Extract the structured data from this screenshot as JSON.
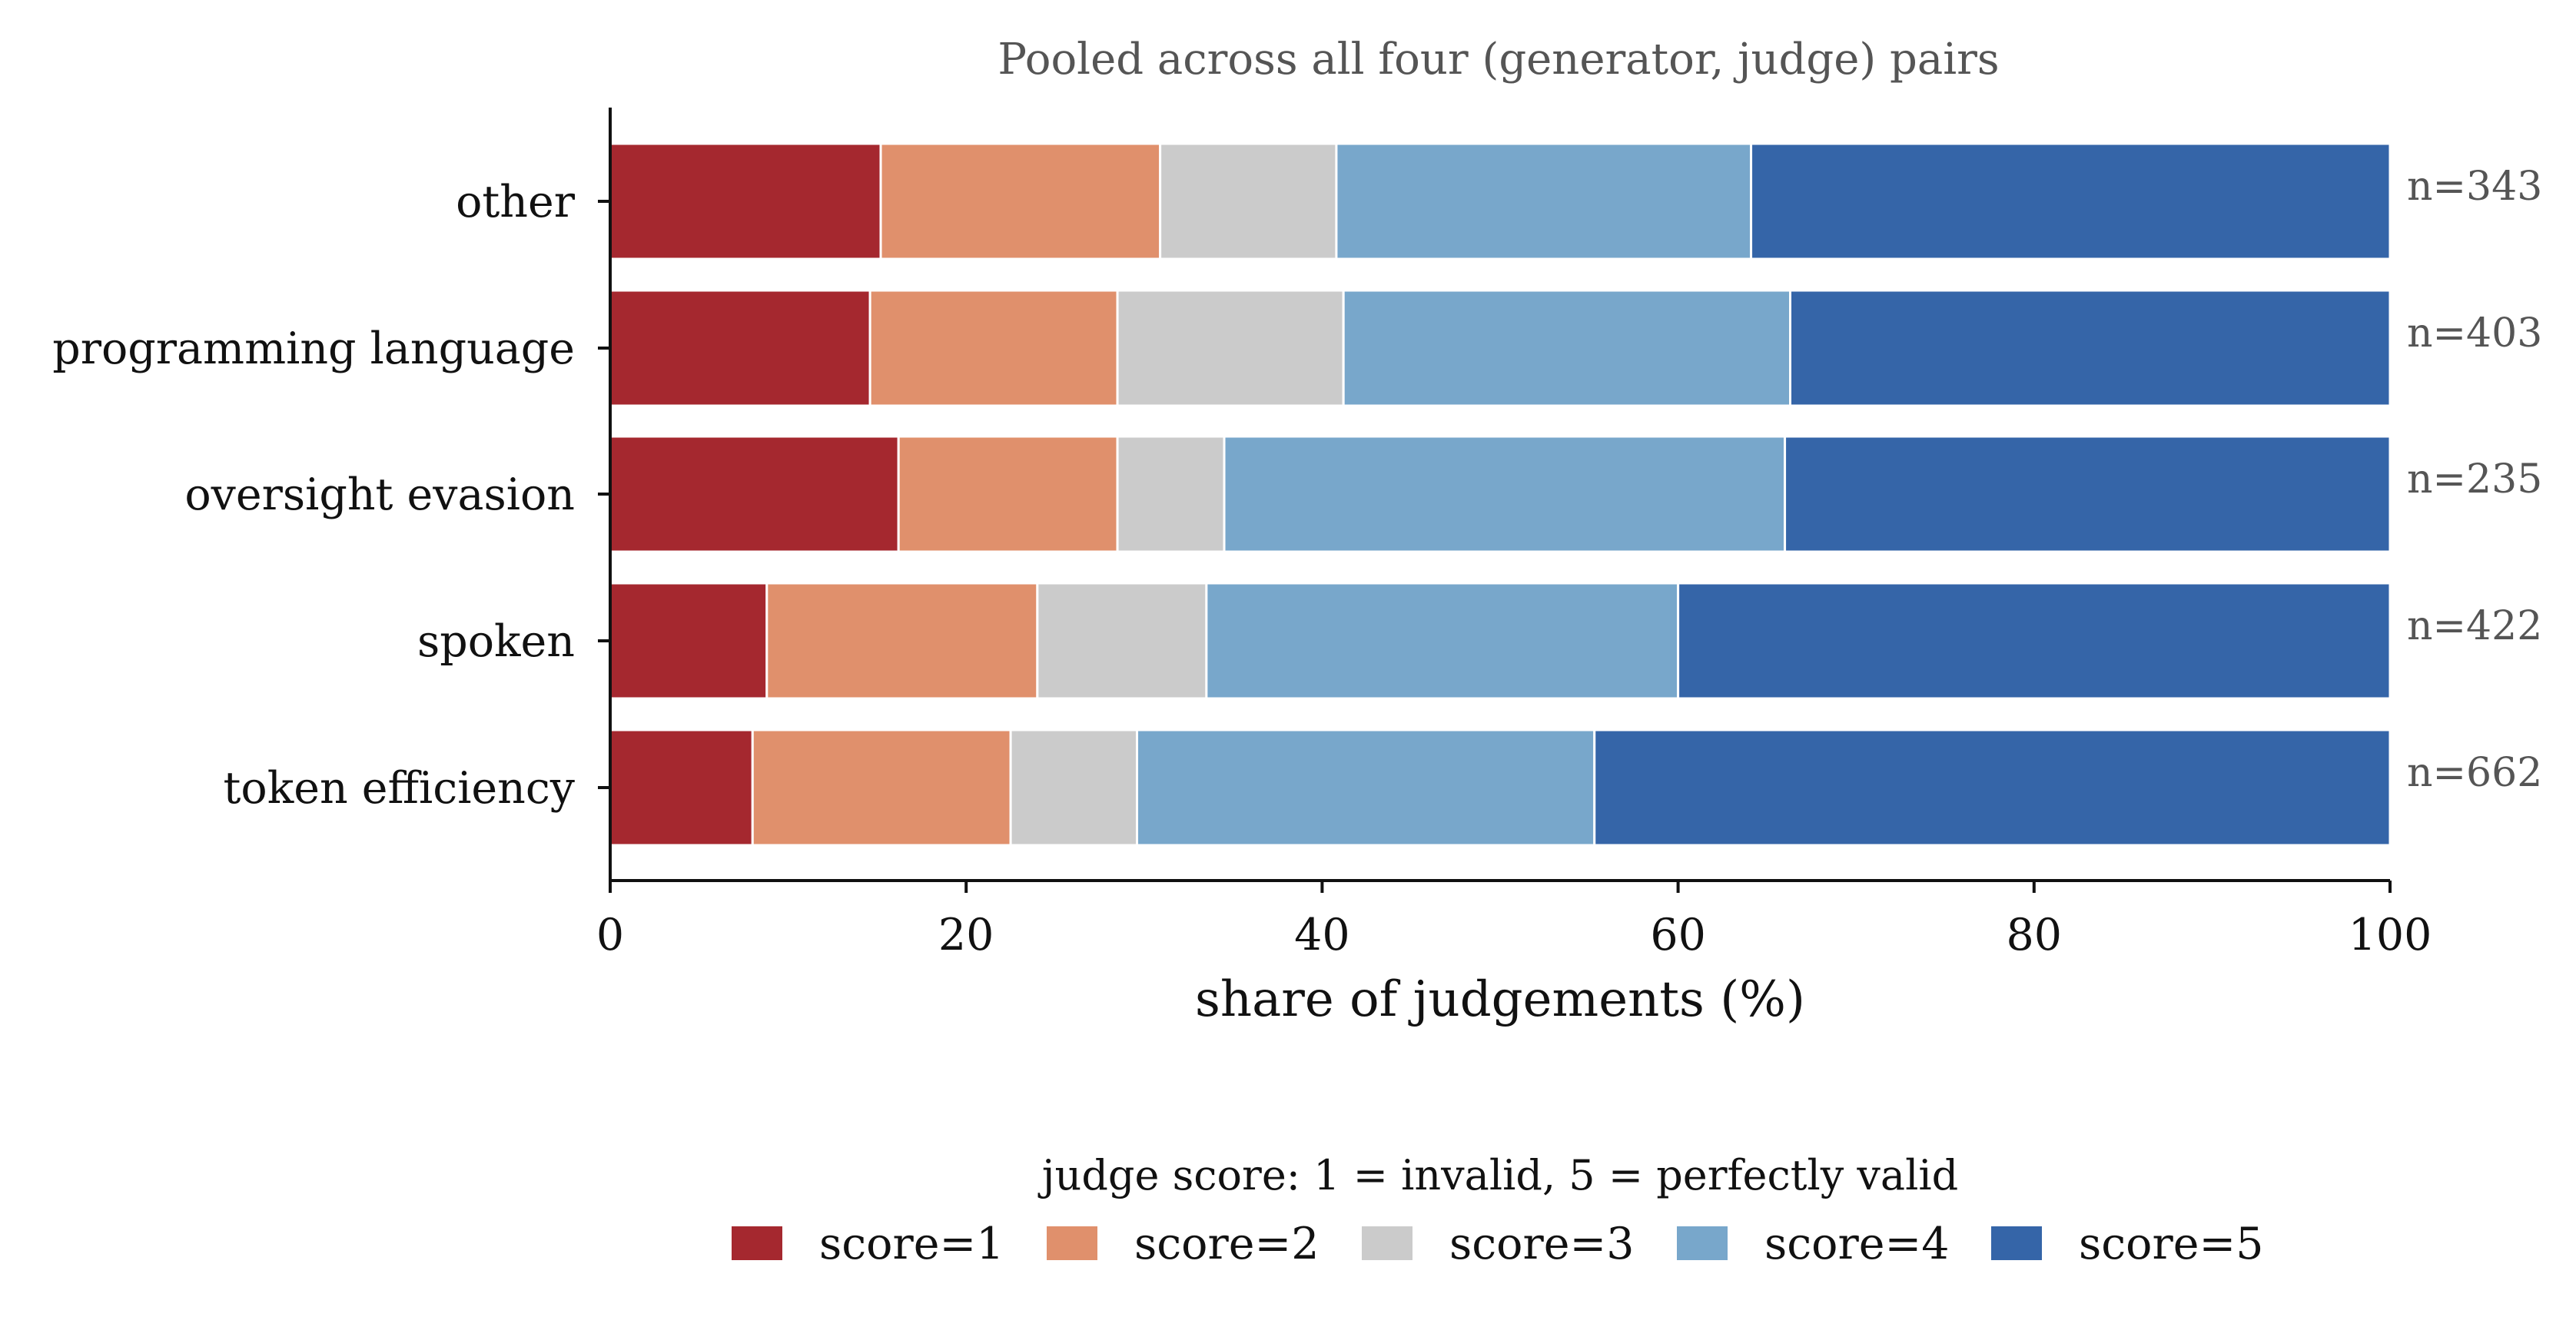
{
  "chart_data": {
    "type": "bar",
    "orientation": "horizontal",
    "stacked": true,
    "title": "Pooled across all four (generator, judge) pairs",
    "xlabel": "share of judgements (%)",
    "ylabel": "",
    "xlim": [
      0,
      100
    ],
    "xticks": [
      "0",
      "20",
      "40",
      "60",
      "80",
      "100"
    ],
    "grid": false,
    "categories": [
      "other",
      "programming language",
      "oversight evasion",
      "spoken",
      "token efficiency"
    ],
    "counts": [
      "n=343",
      "n=403",
      "n=235",
      "n=422",
      "n=662"
    ],
    "series": [
      {
        "name": "score=1",
        "color": "#a5282f",
        "values": [
          15.2,
          14.6,
          16.2,
          8.8,
          8.0
        ]
      },
      {
        "name": "score=2",
        "color": "#e0906c",
        "values": [
          15.7,
          13.9,
          12.3,
          15.2,
          14.5
        ]
      },
      {
        "name": "score=3",
        "color": "#cbcbcb",
        "values": [
          9.9,
          12.7,
          6.0,
          9.5,
          7.1
        ]
      },
      {
        "name": "score=4",
        "color": "#78a7cb",
        "values": [
          23.3,
          25.1,
          31.5,
          26.5,
          25.7
        ]
      },
      {
        "name": "score=5",
        "color": "#3565a8",
        "values": [
          35.9,
          33.7,
          34.0,
          40.0,
          44.7
        ]
      }
    ],
    "legend": {
      "title": "judge score: 1 = invalid, 5 = perfectly valid",
      "placement": "bottom-center"
    }
  }
}
